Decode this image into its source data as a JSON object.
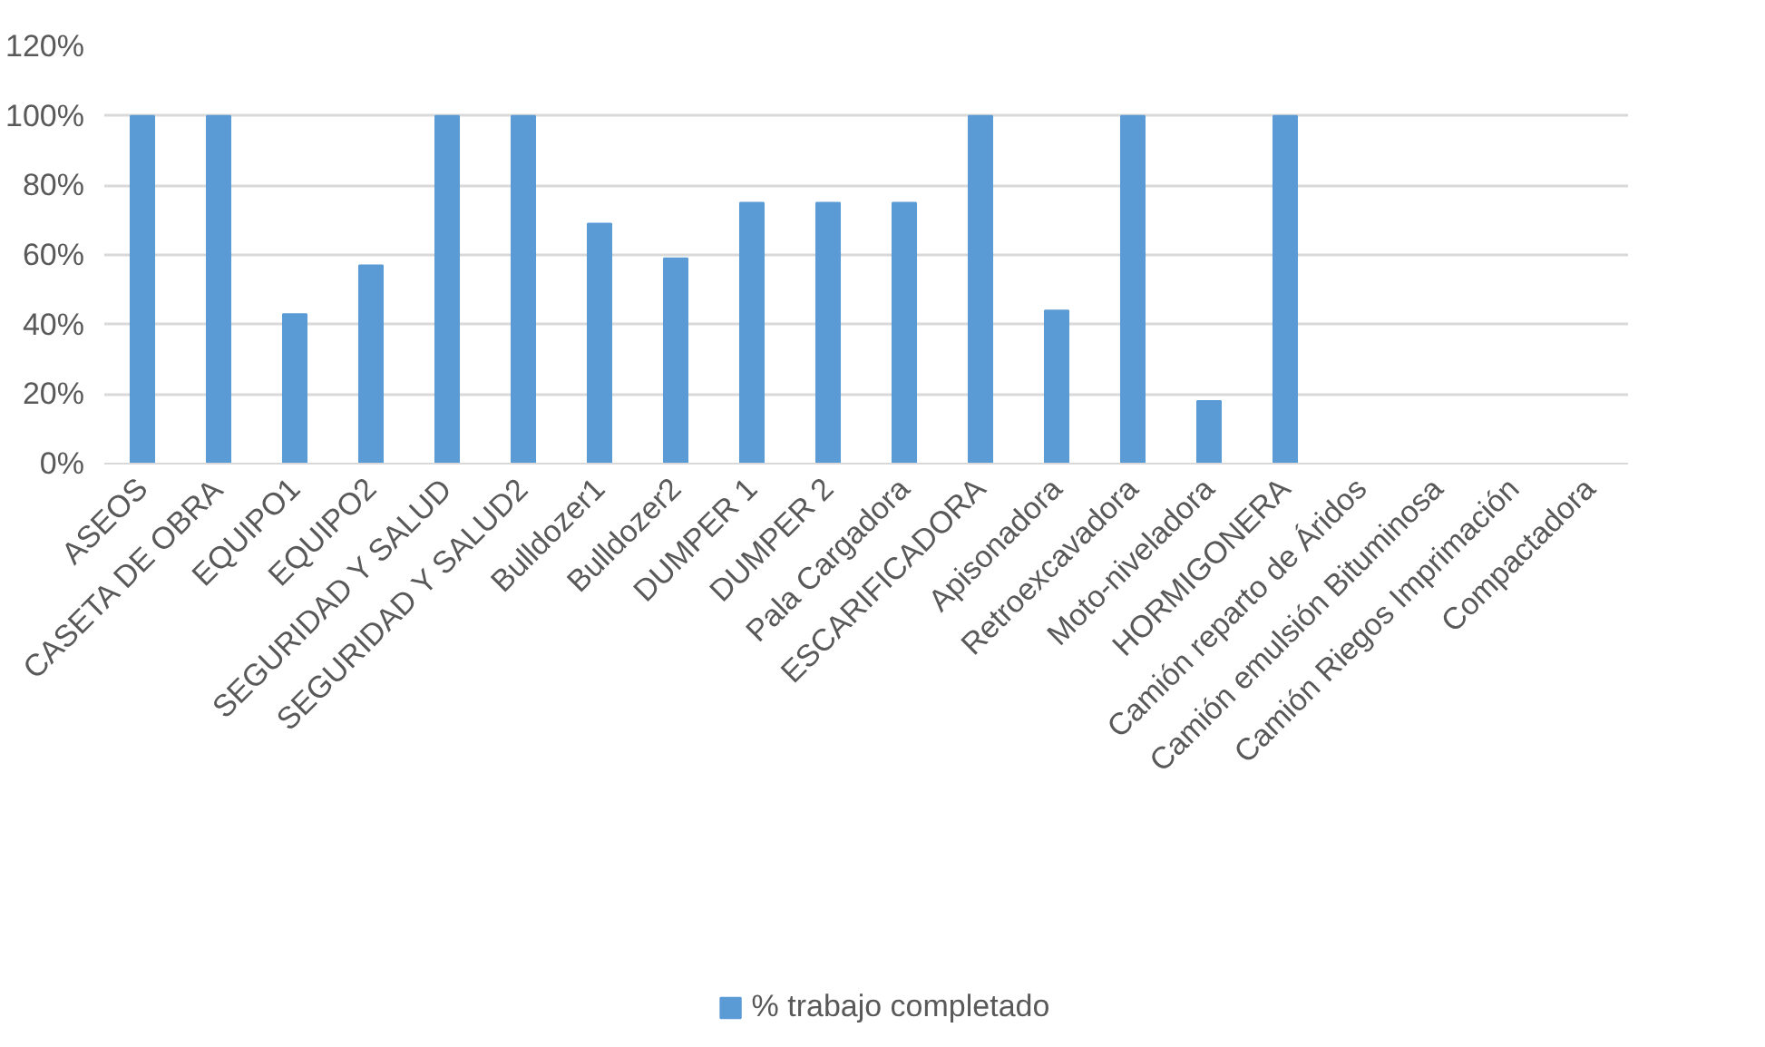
{
  "chart_data": {
    "type": "bar",
    "categories": [
      "ASEOS",
      "CASETA DE OBRA",
      "EQUIPO1",
      "EQUIPO2",
      "SEGURIDAD Y SALUD",
      "SEGURIDAD Y SALUD2",
      "Bulldozer1",
      "Bulldozer2",
      "DUMPER 1",
      "DUMPER 2",
      "Pala Cargadora",
      "ESCARIFICADORA",
      "Apisonadora",
      "Retroexcavadora",
      "Moto-niveladora",
      "HORMIGONERA",
      "Camión reparto de Áridos",
      "Camión emulsión Bituminosa",
      "Camión Riegos Imprimación",
      "Compactadora"
    ],
    "series": [
      {
        "name": "% trabajo completado",
        "color": "#5b9bd5",
        "values": [
          100,
          100,
          43,
          57,
          100,
          100,
          69,
          59,
          75,
          75,
          75,
          100,
          44,
          100,
          18,
          100,
          0,
          0,
          0,
          0
        ]
      }
    ],
    "ylim": [
      0,
      120
    ],
    "yticks": [
      {
        "value": 0,
        "label": "0%"
      },
      {
        "value": 20,
        "label": "20%"
      },
      {
        "value": 40,
        "label": "40%"
      },
      {
        "value": 60,
        "label": "60%"
      },
      {
        "value": 80,
        "label": "80%"
      },
      {
        "value": 100,
        "label": "100%"
      },
      {
        "value": 120,
        "label": "120%"
      }
    ],
    "grid": "y",
    "legend": "bottom"
  }
}
